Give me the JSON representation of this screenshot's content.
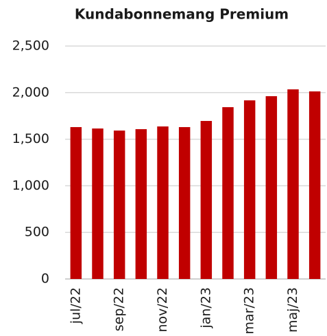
{
  "chart_data": {
    "type": "bar",
    "title": "Kundabonnemang Premium",
    "categories": [
      "jul/22",
      null,
      "sep/22",
      null,
      "nov/22",
      null,
      "jan/23",
      null,
      "mar/23",
      null,
      "maj/23",
      null
    ],
    "values": [
      1630,
      1615,
      1593,
      1608,
      1637,
      1630,
      1696,
      1844,
      1917,
      1962,
      2035,
      2013
    ],
    "color": "#c00000",
    "ylim": [
      0,
      2500
    ],
    "yticks": [
      0,
      {
        "value": 500,
        "label": "500"
      },
      {
        "value": 1000,
        "label": "1,000"
      },
      {
        "value": 1500,
        "label": "1,500"
      },
      {
        "value": 2000,
        "label": "2,000"
      },
      {
        "value": 2500,
        "label": "2,500"
      }
    ],
    "grid": true
  }
}
